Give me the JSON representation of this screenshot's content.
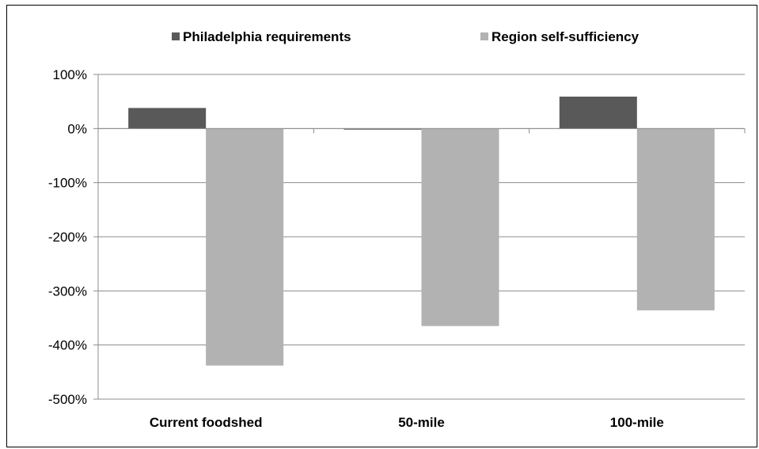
{
  "chart_data": {
    "type": "bar",
    "categories": [
      "Current foodshed",
      "50-mile",
      "100-mile"
    ],
    "series": [
      {
        "name": "Philadelphia requirements",
        "color": "#595959",
        "values": [
          38,
          -2,
          59
        ]
      },
      {
        "name": "Region self-sufficiency",
        "color": "#b2b2b2",
        "values": [
          -438,
          -365,
          -336
        ]
      }
    ],
    "ylim": [
      -500,
      100
    ],
    "yticks": [
      100,
      0,
      -100,
      -200,
      -300,
      -400,
      -500
    ],
    "ytick_labels": [
      "100%",
      "0%",
      "-100%",
      "-200%",
      "-300%",
      "-400%",
      "-500%"
    ],
    "grid": true,
    "legend_position": "top",
    "title": "",
    "xlabel": "",
    "ylabel": ""
  }
}
